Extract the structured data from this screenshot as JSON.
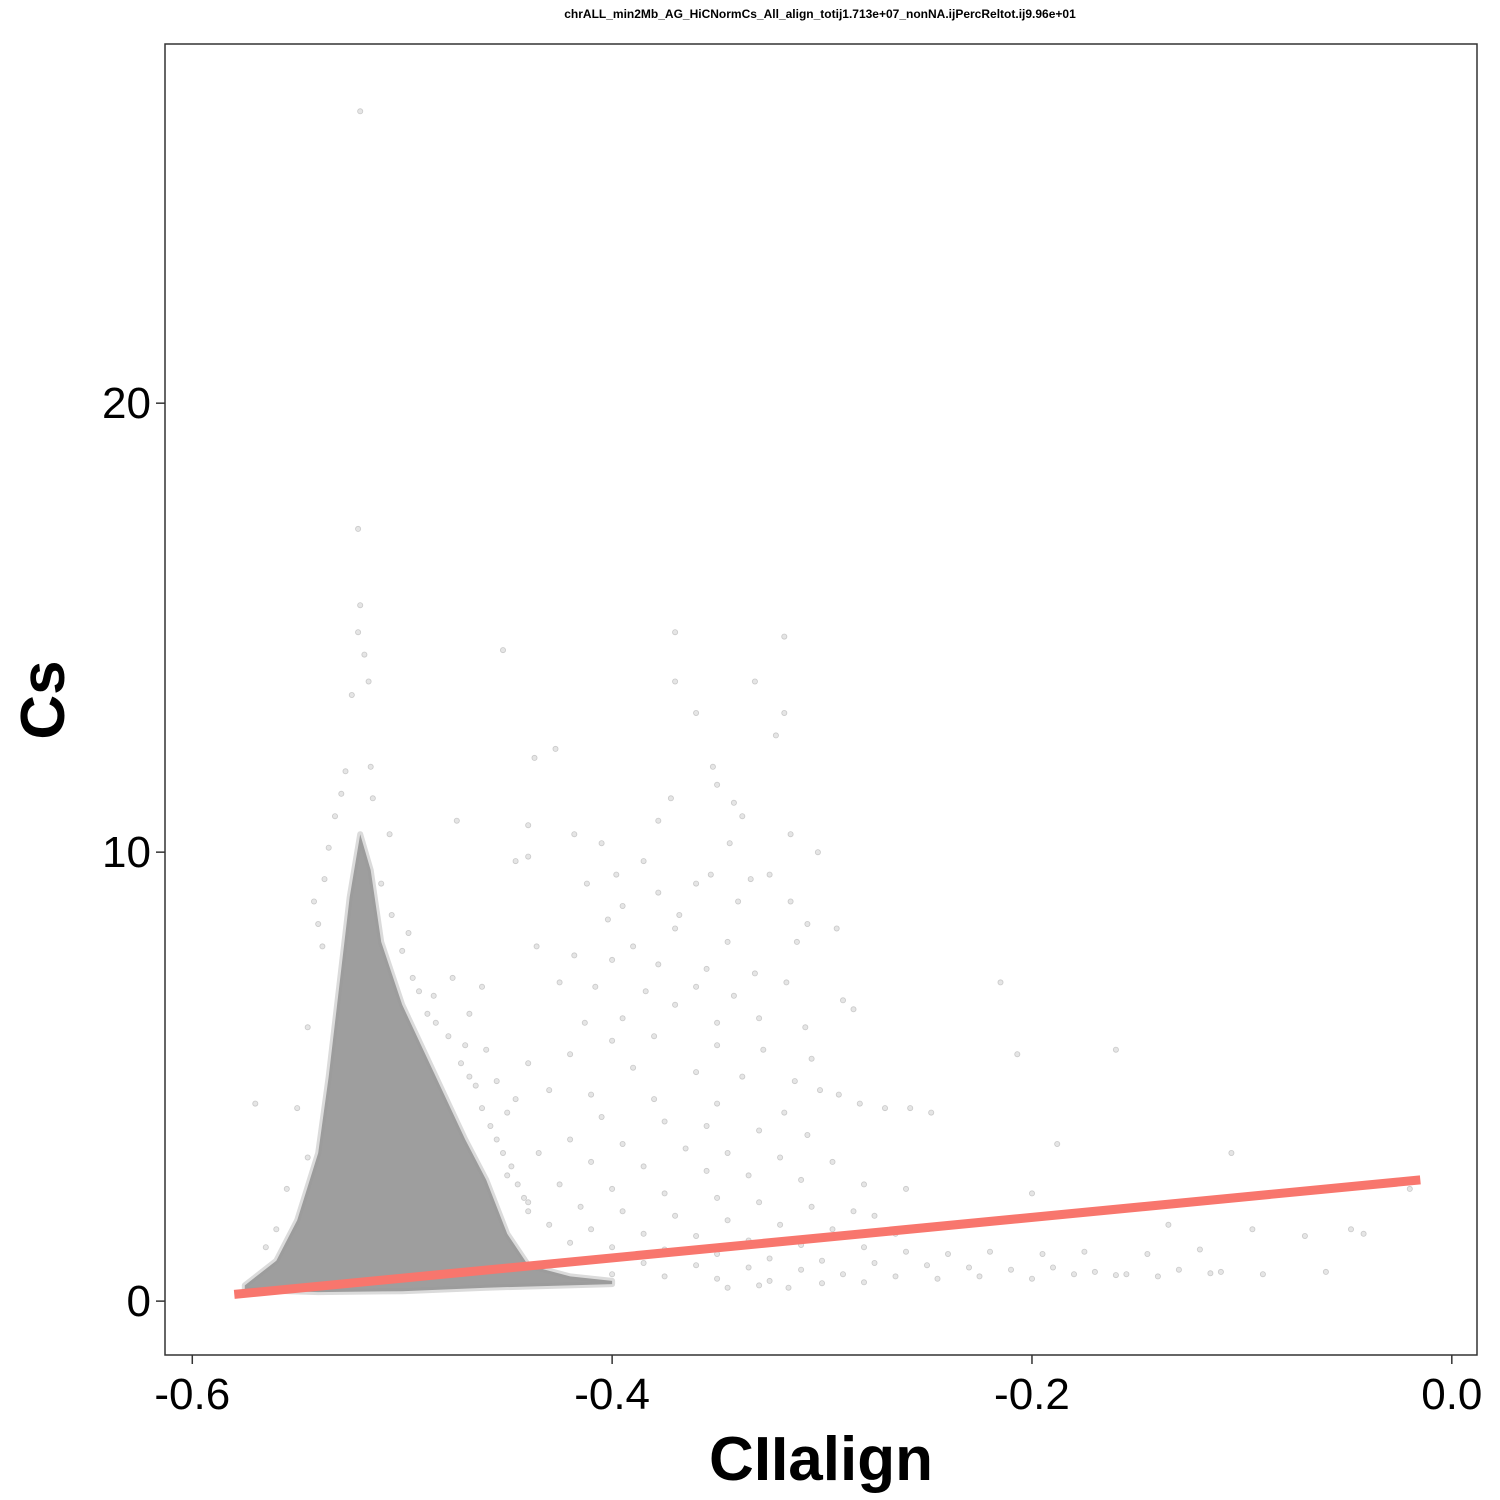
{
  "chart_data": {
    "type": "scatter",
    "title": "chrALL_min2Mb_AG_HiCNormCs_All_align_totij1.713e+07_nonNA.ijPercReltot.ij9.96e+01",
    "xlabel": "CIIalign",
    "ylabel": "Cs",
    "xlim": [
      -0.613,
      0.012
    ],
    "ylim": [
      -1.2,
      28.0
    ],
    "x_ticks": [
      -0.6,
      -0.4,
      -0.2,
      0.0
    ],
    "x_tick_labels": [
      "-0.6",
      "-0.4",
      "-0.2",
      "0.0"
    ],
    "y_ticks": [
      0,
      10,
      20
    ],
    "y_tick_labels": [
      "0",
      "10",
      "20"
    ],
    "grid": false,
    "legend": "none",
    "point_color": "#999999",
    "point_opacity": 0.25,
    "trend_line": {
      "color": "#F8766D",
      "x": [
        -0.58,
        -0.015
      ],
      "y": [
        0.15,
        2.7
      ]
    },
    "dense_cluster": {
      "peak_x": -0.52,
      "outline_upper": [
        [
          -0.575,
          0.35
        ],
        [
          -0.56,
          0.9
        ],
        [
          -0.55,
          1.8
        ],
        [
          -0.54,
          3.3
        ],
        [
          -0.535,
          5.0
        ],
        [
          -0.53,
          7.0
        ],
        [
          -0.525,
          9.0
        ],
        [
          -0.52,
          10.4
        ],
        [
          -0.515,
          9.6
        ],
        [
          -0.51,
          8.0
        ],
        [
          -0.5,
          6.6
        ],
        [
          -0.49,
          5.6
        ],
        [
          -0.48,
          4.6
        ],
        [
          -0.47,
          3.6
        ],
        [
          -0.46,
          2.7
        ],
        [
          -0.45,
          1.5
        ],
        [
          -0.44,
          0.8
        ],
        [
          -0.42,
          0.55
        ],
        [
          -0.4,
          0.45
        ]
      ],
      "outline_lower": [
        [
          -0.575,
          0.25
        ],
        [
          -0.54,
          0.2
        ],
        [
          -0.5,
          0.22
        ],
        [
          -0.46,
          0.3
        ],
        [
          -0.4,
          0.38
        ]
      ]
    },
    "points": [
      [
        -0.52,
        26.5
      ],
      [
        -0.521,
        17.2
      ],
      [
        -0.52,
        15.5
      ],
      [
        -0.521,
        14.9
      ],
      [
        -0.518,
        14.4
      ],
      [
        -0.516,
        13.8
      ],
      [
        -0.524,
        13.5
      ],
      [
        -0.452,
        14.5
      ],
      [
        -0.37,
        14.9
      ],
      [
        -0.318,
        14.8
      ],
      [
        -0.37,
        13.8
      ],
      [
        -0.332,
        13.8
      ],
      [
        -0.36,
        13.1
      ],
      [
        -0.318,
        13.1
      ],
      [
        -0.322,
        12.6
      ],
      [
        -0.437,
        12.1
      ],
      [
        -0.427,
        12.3
      ],
      [
        -0.352,
        11.9
      ],
      [
        -0.35,
        11.5
      ],
      [
        -0.372,
        11.2
      ],
      [
        -0.342,
        11.1
      ],
      [
        -0.338,
        10.8
      ],
      [
        -0.378,
        10.7
      ],
      [
        -0.315,
        10.4
      ],
      [
        -0.44,
        10.6
      ],
      [
        -0.418,
        10.4
      ],
      [
        -0.474,
        10.7
      ],
      [
        -0.344,
        10.2
      ],
      [
        -0.302,
        10.0
      ],
      [
        -0.405,
        10.2
      ],
      [
        -0.44,
        9.9
      ],
      [
        -0.446,
        9.8
      ],
      [
        -0.385,
        9.8
      ],
      [
        -0.398,
        9.5
      ],
      [
        -0.353,
        9.5
      ],
      [
        -0.334,
        9.4
      ],
      [
        -0.325,
        9.5
      ],
      [
        -0.36,
        9.3
      ],
      [
        -0.378,
        9.1
      ],
      [
        -0.412,
        9.3
      ],
      [
        -0.34,
        8.9
      ],
      [
        -0.315,
        8.9
      ],
      [
        -0.307,
        8.4
      ],
      [
        -0.395,
        8.8
      ],
      [
        -0.402,
        8.5
      ],
      [
        -0.368,
        8.6
      ],
      [
        -0.345,
        8.0
      ],
      [
        -0.312,
        8.0
      ],
      [
        -0.293,
        8.3
      ],
      [
        -0.37,
        8.3
      ],
      [
        -0.39,
        7.9
      ],
      [
        -0.436,
        7.9
      ],
      [
        -0.418,
        7.7
      ],
      [
        -0.4,
        7.6
      ],
      [
        -0.378,
        7.5
      ],
      [
        -0.355,
        7.4
      ],
      [
        -0.332,
        7.3
      ],
      [
        -0.317,
        7.1
      ],
      [
        -0.36,
        7.0
      ],
      [
        -0.384,
        6.9
      ],
      [
        -0.408,
        7.0
      ],
      [
        -0.425,
        7.1
      ],
      [
        -0.342,
        6.8
      ],
      [
        -0.37,
        6.6
      ],
      [
        -0.29,
        6.7
      ],
      [
        -0.285,
        6.5
      ],
      [
        -0.215,
        7.1
      ],
      [
        -0.395,
        6.3
      ],
      [
        -0.413,
        6.2
      ],
      [
        -0.35,
        6.2
      ],
      [
        -0.33,
        6.3
      ],
      [
        -0.308,
        6.1
      ],
      [
        -0.38,
        5.9
      ],
      [
        -0.4,
        5.8
      ],
      [
        -0.35,
        5.7
      ],
      [
        -0.328,
        5.6
      ],
      [
        -0.305,
        5.4
      ],
      [
        -0.207,
        5.5
      ],
      [
        -0.16,
        5.6
      ],
      [
        -0.42,
        5.5
      ],
      [
        -0.44,
        5.3
      ],
      [
        -0.39,
        5.2
      ],
      [
        -0.36,
        5.1
      ],
      [
        -0.338,
        5.0
      ],
      [
        -0.313,
        4.9
      ],
      [
        -0.301,
        4.7
      ],
      [
        -0.292,
        4.6
      ],
      [
        -0.282,
        4.4
      ],
      [
        -0.27,
        4.3
      ],
      [
        -0.43,
        4.7
      ],
      [
        -0.41,
        4.6
      ],
      [
        -0.38,
        4.5
      ],
      [
        -0.35,
        4.4
      ],
      [
        -0.318,
        4.2
      ],
      [
        -0.258,
        4.3
      ],
      [
        -0.248,
        4.2
      ],
      [
        -0.405,
        4.1
      ],
      [
        -0.375,
        4.0
      ],
      [
        -0.355,
        3.9
      ],
      [
        -0.33,
        3.8
      ],
      [
        -0.307,
        3.7
      ],
      [
        -0.42,
        3.6
      ],
      [
        -0.395,
        3.5
      ],
      [
        -0.365,
        3.4
      ],
      [
        -0.345,
        3.3
      ],
      [
        -0.32,
        3.2
      ],
      [
        -0.295,
        3.1
      ],
      [
        -0.188,
        3.5
      ],
      [
        -0.105,
        3.3
      ],
      [
        -0.435,
        3.3
      ],
      [
        -0.41,
        3.1
      ],
      [
        -0.385,
        3.0
      ],
      [
        -0.355,
        2.9
      ],
      [
        -0.335,
        2.8
      ],
      [
        -0.31,
        2.7
      ],
      [
        -0.28,
        2.6
      ],
      [
        -0.26,
        2.5
      ],
      [
        -0.2,
        2.4
      ],
      [
        -0.45,
        2.8
      ],
      [
        -0.425,
        2.6
      ],
      [
        -0.4,
        2.5
      ],
      [
        -0.375,
        2.4
      ],
      [
        -0.35,
        2.3
      ],
      [
        -0.33,
        2.2
      ],
      [
        -0.305,
        2.1
      ],
      [
        -0.285,
        2.0
      ],
      [
        -0.275,
        1.9
      ],
      [
        -0.44,
        2.2
      ],
      [
        -0.415,
        2.1
      ],
      [
        -0.395,
        2.0
      ],
      [
        -0.37,
        1.9
      ],
      [
        -0.345,
        1.8
      ],
      [
        -0.32,
        1.7
      ],
      [
        -0.295,
        1.6
      ],
      [
        -0.265,
        1.5
      ],
      [
        -0.135,
        1.7
      ],
      [
        -0.095,
        1.6
      ],
      [
        -0.02,
        2.5
      ],
      [
        -0.43,
        1.7
      ],
      [
        -0.41,
        1.6
      ],
      [
        -0.385,
        1.5
      ],
      [
        -0.36,
        1.45
      ],
      [
        -0.335,
        1.35
      ],
      [
        -0.31,
        1.25
      ],
      [
        -0.28,
        1.2
      ],
      [
        -0.26,
        1.1
      ],
      [
        -0.24,
        1.05
      ],
      [
        -0.22,
        1.1
      ],
      [
        -0.195,
        1.05
      ],
      [
        -0.175,
        1.1
      ],
      [
        -0.145,
        1.05
      ],
      [
        -0.12,
        1.15
      ],
      [
        -0.07,
        1.45
      ],
      [
        -0.048,
        1.6
      ],
      [
        -0.042,
        1.5
      ],
      [
        -0.42,
        1.3
      ],
      [
        -0.4,
        1.2
      ],
      [
        -0.375,
        1.15
      ],
      [
        -0.35,
        1.05
      ],
      [
        -0.325,
        0.95
      ],
      [
        -0.3,
        0.9
      ],
      [
        -0.275,
        0.85
      ],
      [
        -0.25,
        0.8
      ],
      [
        -0.23,
        0.75
      ],
      [
        -0.21,
        0.7
      ],
      [
        -0.19,
        0.75
      ],
      [
        -0.17,
        0.65
      ],
      [
        -0.155,
        0.6
      ],
      [
        -0.13,
        0.7
      ],
      [
        -0.11,
        0.65
      ],
      [
        -0.09,
        0.6
      ],
      [
        -0.06,
        0.65
      ],
      [
        -0.41,
        0.9
      ],
      [
        -0.385,
        0.85
      ],
      [
        -0.36,
        0.8
      ],
      [
        -0.335,
        0.75
      ],
      [
        -0.31,
        0.7
      ],
      [
        -0.29,
        0.6
      ],
      [
        -0.265,
        0.55
      ],
      [
        -0.245,
        0.5
      ],
      [
        -0.225,
        0.55
      ],
      [
        -0.2,
        0.5
      ],
      [
        -0.18,
        0.6
      ],
      [
        -0.16,
        0.58
      ],
      [
        -0.14,
        0.55
      ],
      [
        -0.115,
        0.62
      ],
      [
        -0.4,
        0.6
      ],
      [
        -0.375,
        0.55
      ],
      [
        -0.35,
        0.5
      ],
      [
        -0.325,
        0.45
      ],
      [
        -0.3,
        0.4
      ],
      [
        -0.28,
        0.42
      ],
      [
        -0.345,
        0.3
      ],
      [
        -0.33,
        0.35
      ],
      [
        -0.316,
        0.3
      ],
      [
        -0.57,
        4.4
      ],
      [
        -0.55,
        4.3
      ],
      [
        -0.545,
        3.2
      ],
      [
        -0.555,
        2.5
      ],
      [
        -0.565,
        1.2
      ],
      [
        -0.56,
        1.6
      ],
      [
        -0.545,
        6.1
      ],
      [
        -0.538,
        7.9
      ],
      [
        -0.54,
        8.4
      ],
      [
        -0.505,
        8.6
      ],
      [
        -0.5,
        7.8
      ],
      [
        -0.497,
        8.2
      ],
      [
        -0.495,
        7.2
      ],
      [
        -0.492,
        6.9
      ],
      [
        -0.488,
        6.4
      ],
      [
        -0.484,
        6.2
      ],
      [
        -0.478,
        5.9
      ],
      [
        -0.472,
        5.3
      ],
      [
        -0.468,
        5.0
      ],
      [
        -0.465,
        4.8
      ],
      [
        -0.462,
        4.3
      ],
      [
        -0.458,
        3.9
      ],
      [
        -0.455,
        3.6
      ],
      [
        -0.452,
        3.3
      ],
      [
        -0.448,
        3.0
      ],
      [
        -0.445,
        2.6
      ],
      [
        -0.442,
        2.3
      ],
      [
        -0.44,
        2.0
      ],
      [
        -0.485,
        6.8
      ],
      [
        -0.476,
        7.2
      ],
      [
        -0.468,
        6.4
      ],
      [
        -0.46,
        5.6
      ],
      [
        -0.455,
        4.9
      ],
      [
        -0.45,
        4.2
      ],
      [
        -0.446,
        4.5
      ],
      [
        -0.462,
        7.0
      ],
      [
        -0.47,
        5.7
      ],
      [
        -0.51,
        9.3
      ],
      [
        -0.506,
        10.4
      ],
      [
        -0.514,
        11.2
      ],
      [
        -0.515,
        11.9
      ],
      [
        -0.527,
        11.8
      ],
      [
        -0.529,
        11.3
      ],
      [
        -0.532,
        10.8
      ],
      [
        -0.535,
        10.1
      ],
      [
        -0.537,
        9.4
      ],
      [
        -0.542,
        8.9
      ]
    ]
  }
}
